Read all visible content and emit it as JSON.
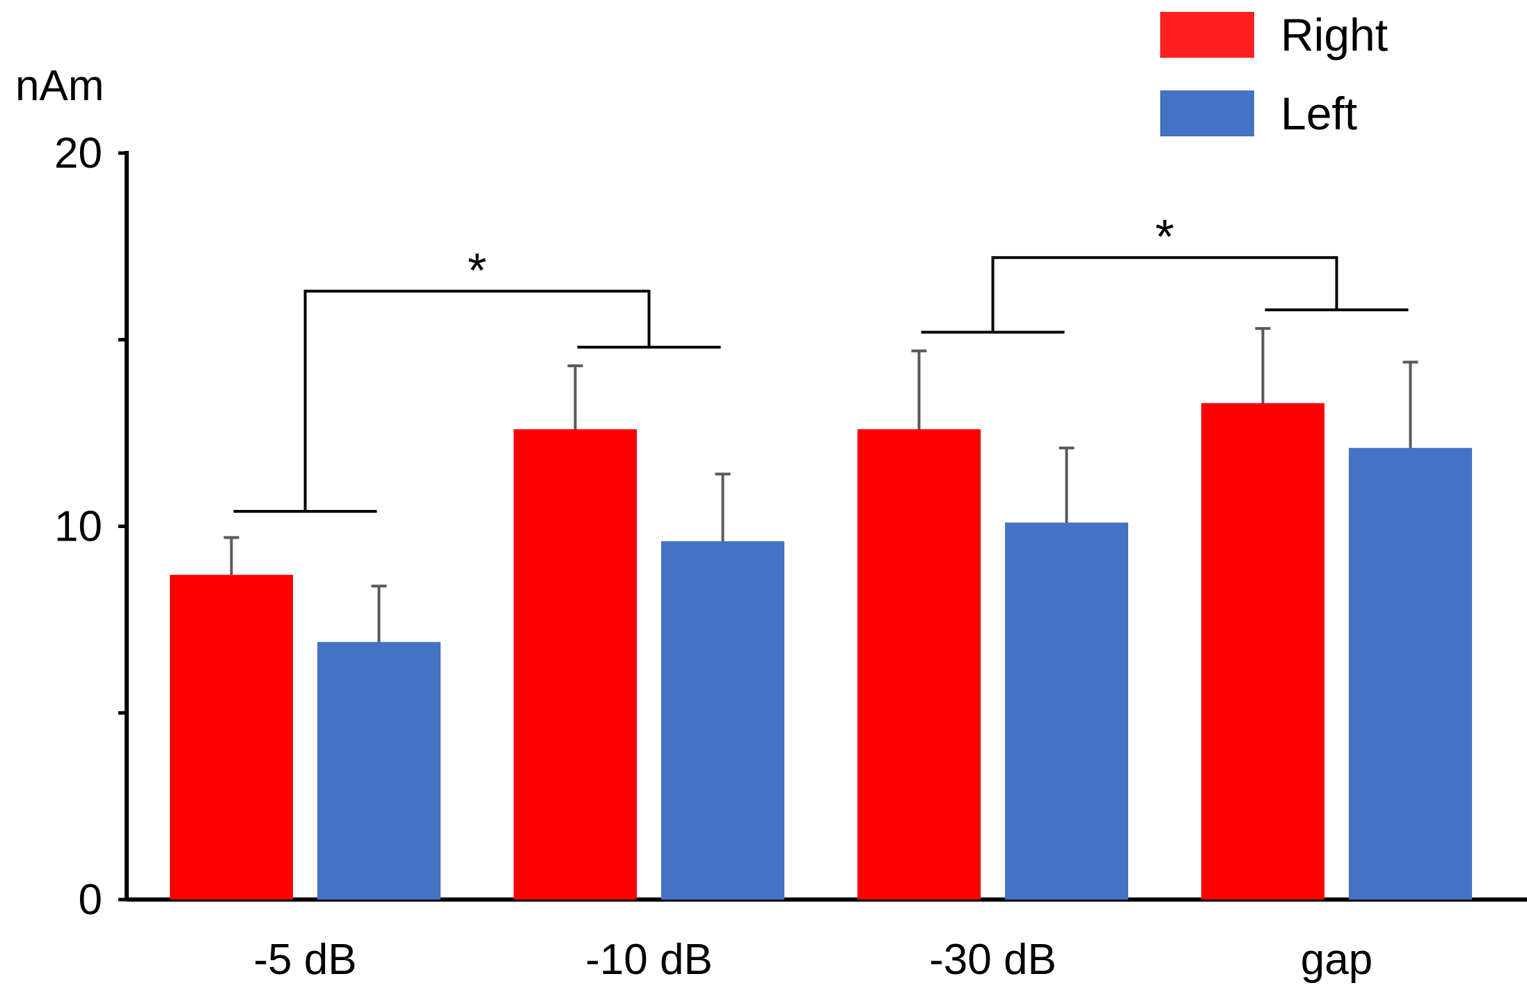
{
  "chart_data": {
    "type": "bar",
    "title": "",
    "xlabel": "",
    "ylabel": "nAm",
    "ylim": [
      0,
      20
    ],
    "yticks": [
      0,
      10,
      20
    ],
    "yminor_ticks": [
      5,
      15
    ],
    "grid": false,
    "categories": [
      "-5 dB",
      "-10 dB",
      "-30 dB",
      "gap"
    ],
    "series": [
      {
        "name": "Right",
        "color": "#ff0000",
        "legend_color": "#ff1f1f",
        "values": [
          8.7,
          12.6,
          12.6,
          13.3
        ],
        "errors": [
          1.0,
          1.7,
          2.1,
          2.0
        ]
      },
      {
        "name": "Left",
        "color": "#4472c4",
        "values": [
          6.9,
          9.6,
          10.1,
          12.1
        ],
        "errors": [
          1.5,
          1.8,
          2.0,
          2.3
        ]
      }
    ],
    "significance": [
      {
        "label": "*",
        "left_group": "-5 dB",
        "right_group": "-10 dB",
        "left_level": 10.4,
        "right_level": 14.8,
        "top_level": 16.3
      },
      {
        "label": "*",
        "left_group": "-30 dB",
        "right_group": "gap",
        "left_level": 15.2,
        "right_level": 15.8,
        "top_level": 17.2
      }
    ],
    "legend_position": "top-right"
  }
}
